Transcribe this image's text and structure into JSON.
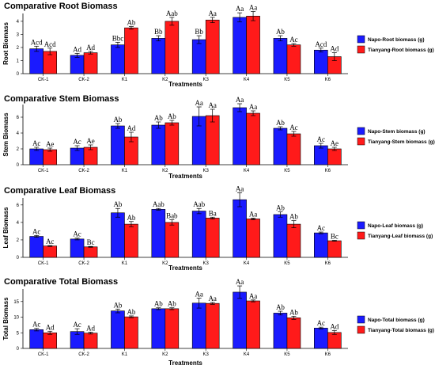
{
  "colors": {
    "napo": "#1a1aff",
    "tianyang": "#ff1a1a",
    "highlight": "#ff99dd"
  },
  "chart_data": [
    {
      "type": "bar",
      "title": "Comparative Root Biomass",
      "xlabel": "Treatments",
      "ylabel": "Root Biomass",
      "ylim": [
        0,
        4.6
      ],
      "yticks": [
        0,
        1,
        2,
        3,
        4
      ],
      "categories": [
        "CK-1",
        "CK-2",
        "K1",
        "K2",
        "K3",
        "K4",
        "K5",
        "K6"
      ],
      "series": [
        {
          "name": "Napo-Root biomass (g)",
          "values": [
            1.9,
            1.4,
            2.2,
            2.7,
            2.6,
            4.3,
            2.7,
            1.8
          ],
          "error": [
            0.2,
            0.15,
            0.2,
            0.2,
            0.3,
            0.35,
            0.2,
            0.15
          ],
          "labels": [
            "Acd",
            "Ad",
            "Bbc",
            "Bb",
            "Bb",
            "Aa",
            "Ab",
            "Acd"
          ]
        },
        {
          "name": "Tianyang-Root biomass (g)",
          "values": [
            1.7,
            1.6,
            3.5,
            4.0,
            4.1,
            4.4,
            2.2,
            1.3
          ],
          "error": [
            0.25,
            0.1,
            0.1,
            0.3,
            0.2,
            0.35,
            0.1,
            0.3
          ],
          "labels": [
            "Acd",
            "Ad",
            "Ab",
            "Aab",
            "Aa",
            "Aa",
            "Ac",
            "Ad"
          ]
        }
      ]
    },
    {
      "type": "bar",
      "title": "Comparative Stem Biomass",
      "xlabel": "Treatments",
      "ylabel": "Stem Biomass",
      "ylim": [
        0,
        7.6
      ],
      "yticks": [
        0,
        2,
        4,
        6
      ],
      "categories": [
        "CK-1",
        "CK-2",
        "K1",
        "K2",
        "K3",
        "K4",
        "K5",
        "K6"
      ],
      "series": [
        {
          "name": "Napo-Stem biomass (g)",
          "values": [
            2.0,
            2.1,
            4.9,
            5.0,
            6.1,
            7.2,
            4.6,
            2.4
          ],
          "error": [
            0.2,
            0.3,
            0.3,
            0.4,
            1.2,
            0.5,
            0.2,
            0.3
          ],
          "labels": [
            "Ac",
            "Ac",
            "Ab",
            "Ab",
            "Aa",
            "Aa",
            "Ab",
            "Ac"
          ]
        },
        {
          "name": "Tianyang-Stem biomass (g)",
          "values": [
            1.9,
            2.2,
            3.5,
            5.3,
            6.2,
            6.5,
            3.9,
            2.0
          ],
          "error": [
            0.2,
            0.3,
            0.6,
            0.3,
            0.8,
            0.3,
            0.3,
            0.2
          ],
          "labels": [
            "Ae",
            "Ae",
            "Ad",
            "Ab",
            "Aa",
            "Aa",
            "Ac",
            "Ae"
          ]
        }
      ]
    },
    {
      "type": "bar",
      "title": "Comparative Leaf Biomass",
      "xlabel": "Treatments",
      "ylabel": "Leaf Biomass",
      "ylim": [
        0,
        6.8
      ],
      "yticks": [
        0,
        2,
        4,
        6
      ],
      "categories": [
        "CK-1",
        "CK-2",
        "K1",
        "K2",
        "K3",
        "K4",
        "K5",
        "K6"
      ],
      "series": [
        {
          "name": "Napo-Leaf biomass (g)",
          "values": [
            2.4,
            2.1,
            5.1,
            5.5,
            5.3,
            6.6,
            4.9,
            2.8
          ],
          "error": [
            0.1,
            0.1,
            0.5,
            0.1,
            0.3,
            0.8,
            0.3,
            0.1
          ],
          "labels": [
            "Ac",
            "Ac",
            "Ab",
            "Aab",
            "Aab",
            "Aa",
            "Ab",
            "Ac"
          ]
        },
        {
          "name": "Tianyang-Leaf biomass (g)",
          "values": [
            1.3,
            1.2,
            3.8,
            4.0,
            4.5,
            4.4,
            3.8,
            1.9
          ],
          "error": [
            0.05,
            0.05,
            0.3,
            0.3,
            0.1,
            0.1,
            0.4,
            0.05
          ],
          "labels": [
            "Ac",
            "Bc",
            "Ab",
            "Bab",
            "Ba",
            "Aa",
            "Ab",
            "Bc"
          ]
        }
      ]
    },
    {
      "type": "bar",
      "title": "Comparative Total Biomass",
      "xlabel": "Treatments",
      "ylabel": "Total Biomass",
      "ylim": [
        0,
        19
      ],
      "yticks": [
        0,
        5,
        10,
        15
      ],
      "categories": [
        "CK-1",
        "CK-2",
        "K1",
        "K2",
        "K3",
        "K4",
        "K5",
        "K6"
      ],
      "series": [
        {
          "name": "Napo-Total biomass (g)",
          "values": [
            6.0,
            5.4,
            12.0,
            12.7,
            14.5,
            18.0,
            11.3,
            6.5
          ],
          "error": [
            0.4,
            0.9,
            0.6,
            0.3,
            1.6,
            2.0,
            0.6,
            0.3
          ],
          "labels": [
            "Ac",
            "Ac",
            "Ab",
            "Ab",
            "Aa",
            "Aa",
            "Ab",
            "Ac"
          ]
        },
        {
          "name": "Tianyang-Total biomass (g)",
          "values": [
            5.0,
            4.9,
            10.1,
            12.7,
            14.4,
            15.2,
            9.8,
            5.1
          ],
          "error": [
            0.5,
            0.3,
            0.3,
            0.3,
            0.3,
            0.3,
            0.5,
            0.6
          ],
          "labels": [
            "Ad",
            "Ad",
            "Ab",
            "Ab",
            "Aa",
            "Aa",
            "Ab",
            "Ad"
          ]
        }
      ]
    }
  ]
}
